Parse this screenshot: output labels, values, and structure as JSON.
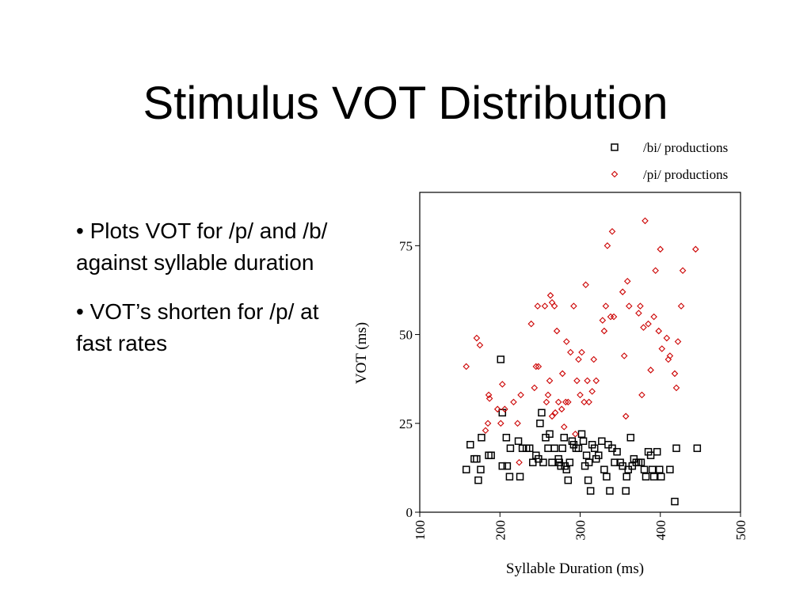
{
  "slide": {
    "title": "Stimulus VOT Distribution",
    "bullets": [
      "• Plots VOT for /p/ and /b/ against syllable duration",
      "•  VOT’s shorten for /p/ at fast rates"
    ]
  },
  "chart_data": {
    "type": "scatter",
    "title": "",
    "xlabel": "Syllable Duration (ms)",
    "ylabel": "VOT (ms)",
    "xlim": [
      100,
      500
    ],
    "ylim": [
      0,
      90
    ],
    "xticks": [
      100,
      200,
      300,
      400,
      500
    ],
    "yticks": [
      0,
      25,
      50,
      75
    ],
    "grid": false,
    "legend_position": "top-right",
    "series": [
      {
        "name": "/bi/ productions",
        "marker": "square",
        "color": "#000000",
        "points": [
          [
            158,
            12
          ],
          [
            163,
            19
          ],
          [
            168,
            15
          ],
          [
            171,
            15
          ],
          [
            173,
            9
          ],
          [
            176,
            12
          ],
          [
            177,
            21
          ],
          [
            186,
            16
          ],
          [
            189,
            16
          ],
          [
            201,
            43
          ],
          [
            203,
            13
          ],
          [
            203,
            28
          ],
          [
            208,
            21
          ],
          [
            209,
            13
          ],
          [
            212,
            10
          ],
          [
            213,
            18
          ],
          [
            223,
            20
          ],
          [
            225,
            10
          ],
          [
            228,
            18
          ],
          [
            233,
            18
          ],
          [
            237,
            18
          ],
          [
            241,
            14
          ],
          [
            245,
            16
          ],
          [
            248,
            15
          ],
          [
            250,
            25
          ],
          [
            252,
            28
          ],
          [
            254,
            14
          ],
          [
            257,
            21
          ],
          [
            260,
            18
          ],
          [
            262,
            22
          ],
          [
            265,
            14
          ],
          [
            268,
            18
          ],
          [
            273,
            15
          ],
          [
            274,
            14
          ],
          [
            276,
            13
          ],
          [
            278,
            18
          ],
          [
            280,
            21
          ],
          [
            281,
            13
          ],
          [
            283,
            12
          ],
          [
            285,
            9
          ],
          [
            287,
            14
          ],
          [
            290,
            20
          ],
          [
            292,
            19
          ],
          [
            295,
            18
          ],
          [
            298,
            18
          ],
          [
            302,
            22
          ],
          [
            304,
            20
          ],
          [
            306,
            13
          ],
          [
            308,
            16
          ],
          [
            310,
            9
          ],
          [
            311,
            14
          ],
          [
            313,
            6
          ],
          [
            315,
            19
          ],
          [
            318,
            18
          ],
          [
            320,
            15
          ],
          [
            323,
            16
          ],
          [
            327,
            20
          ],
          [
            330,
            12
          ],
          [
            333,
            10
          ],
          [
            335,
            19
          ],
          [
            337,
            6
          ],
          [
            340,
            18
          ],
          [
            343,
            14
          ],
          [
            346,
            17
          ],
          [
            350,
            14
          ],
          [
            353,
            13
          ],
          [
            357,
            6
          ],
          [
            358,
            10
          ],
          [
            360,
            12
          ],
          [
            363,
            21
          ],
          [
            365,
            13
          ],
          [
            367,
            15
          ],
          [
            370,
            14
          ],
          [
            373,
            14
          ],
          [
            376,
            14
          ],
          [
            380,
            12
          ],
          [
            382,
            10
          ],
          [
            385,
            17
          ],
          [
            388,
            16
          ],
          [
            390,
            12
          ],
          [
            392,
            10
          ],
          [
            396,
            17
          ],
          [
            399,
            12
          ],
          [
            401,
            10
          ],
          [
            412,
            12
          ],
          [
            418,
            3
          ],
          [
            420,
            18
          ],
          [
            446,
            18
          ]
        ]
      },
      {
        "name": "/pi/ productions",
        "marker": "diamond",
        "color": "#cc0000",
        "points": [
          [
            158,
            41
          ],
          [
            171,
            49
          ],
          [
            175,
            47
          ],
          [
            182,
            23
          ],
          [
            185,
            25
          ],
          [
            186,
            33
          ],
          [
            187,
            32
          ],
          [
            197,
            29
          ],
          [
            201,
            25
          ],
          [
            203,
            36
          ],
          [
            206,
            29
          ],
          [
            217,
            31
          ],
          [
            222,
            25
          ],
          [
            224,
            14
          ],
          [
            226,
            33
          ],
          [
            239,
            53
          ],
          [
            243,
            35
          ],
          [
            245,
            41
          ],
          [
            247,
            58
          ],
          [
            248,
            41
          ],
          [
            256,
            58
          ],
          [
            258,
            31
          ],
          [
            260,
            33
          ],
          [
            262,
            37
          ],
          [
            263,
            61
          ],
          [
            265,
            27
          ],
          [
            265,
            59
          ],
          [
            268,
            58
          ],
          [
            269,
            28
          ],
          [
            271,
            51
          ],
          [
            273,
            31
          ],
          [
            277,
            29
          ],
          [
            278,
            39
          ],
          [
            280,
            24
          ],
          [
            282,
            31
          ],
          [
            283,
            48
          ],
          [
            285,
            31
          ],
          [
            288,
            45
          ],
          [
            292,
            58
          ],
          [
            294,
            22
          ],
          [
            296,
            37
          ],
          [
            298,
            43
          ],
          [
            300,
            33
          ],
          [
            302,
            45
          ],
          [
            305,
            31
          ],
          [
            307,
            64
          ],
          [
            309,
            37
          ],
          [
            311,
            31
          ],
          [
            315,
            34
          ],
          [
            317,
            43
          ],
          [
            320,
            37
          ],
          [
            328,
            54
          ],
          [
            330,
            51
          ],
          [
            332,
            58
          ],
          [
            334,
            75
          ],
          [
            338,
            55
          ],
          [
            340,
            79
          ],
          [
            342,
            55
          ],
          [
            353,
            62
          ],
          [
            355,
            44
          ],
          [
            357,
            27
          ],
          [
            359,
            65
          ],
          [
            361,
            58
          ],
          [
            373,
            56
          ],
          [
            375,
            58
          ],
          [
            377,
            33
          ],
          [
            379,
            52
          ],
          [
            381,
            82
          ],
          [
            385,
            53
          ],
          [
            388,
            40
          ],
          [
            392,
            55
          ],
          [
            394,
            68
          ],
          [
            398,
            51
          ],
          [
            400,
            74
          ],
          [
            402,
            46
          ],
          [
            408,
            49
          ],
          [
            410,
            43
          ],
          [
            412,
            44
          ],
          [
            418,
            39
          ],
          [
            420,
            35
          ],
          [
            422,
            48
          ],
          [
            426,
            58
          ],
          [
            428,
            68
          ],
          [
            444,
            74
          ]
        ]
      }
    ]
  }
}
